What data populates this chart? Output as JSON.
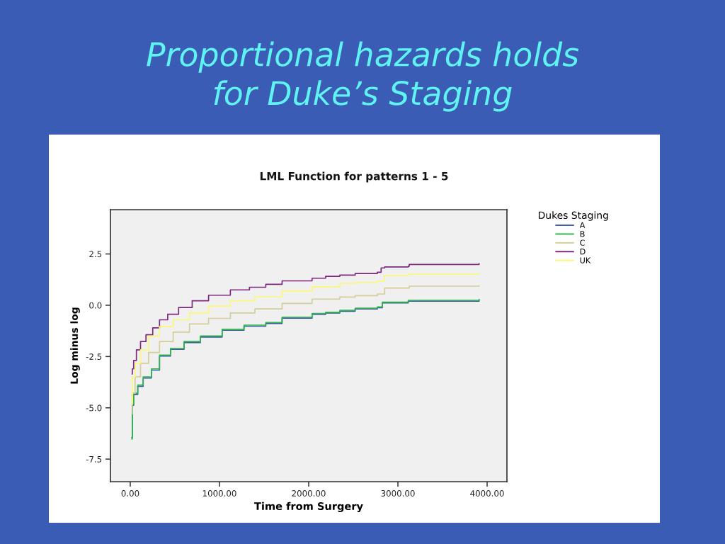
{
  "chart_data": {
    "type": "step",
    "title": "Proportional hazards holds\nfor Duke’s Staging",
    "subtitle": "LML Function for patterns 1 - 5",
    "xlabel": "Time from Surgery",
    "ylabel": "Log minus log",
    "legend_title": "Dukes Staging",
    "xlim": [
      -222,
      4222
    ],
    "ylim": [
      -8.6,
      4.66
    ],
    "xticks": [
      {
        "value": 0,
        "label": "0.00"
      },
      {
        "value": 1000,
        "label": "1000.00"
      },
      {
        "value": 2000,
        "label": "2000.00"
      },
      {
        "value": 3000,
        "label": "3000.00"
      },
      {
        "value": 4000,
        "label": "4000.00"
      }
    ],
    "yticks": [
      2.5,
      {
        "value": 0,
        "label": "0.0"
      },
      -2.5,
      {
        "value": -5,
        "label": "-5.0"
      },
      -7.5
    ],
    "legend": "right",
    "series": [
      {
        "name": "A",
        "color": "#3e58ac",
        "x": [
          16,
          23,
          38,
          84,
          145,
          237,
          328,
          451,
          603,
          786,
          1030,
          1275,
          1519,
          1702,
          2038,
          2190,
          2349,
          2521,
          2770,
          2825,
          3116,
          3910
        ],
        "values": [
          -6.45,
          -4.88,
          -4.35,
          -3.95,
          -3.55,
          -3.16,
          -2.48,
          -2.15,
          -1.82,
          -1.55,
          -1.22,
          -1.02,
          -0.89,
          -0.63,
          -0.45,
          -0.38,
          -0.29,
          -0.18,
          -0.12,
          0.11,
          0.2,
          0.25
        ]
      },
      {
        "name": "B",
        "color": "#2eb848",
        "x": [
          16,
          23,
          38,
          84,
          145,
          237,
          328,
          451,
          603,
          786,
          1030,
          1275,
          1519,
          1702,
          2038,
          2190,
          2349,
          2521,
          2770,
          2825,
          3116,
          3910
        ],
        "values": [
          -6.52,
          -4.82,
          -4.29,
          -3.89,
          -3.49,
          -3.1,
          -2.43,
          -2.1,
          -1.77,
          -1.5,
          -1.17,
          -0.97,
          -0.84,
          -0.58,
          -0.4,
          -0.34,
          -0.25,
          -0.14,
          -0.08,
          0.15,
          0.24,
          0.29
        ]
      },
      {
        "name": "C",
        "color": "#d3ce97",
        "x": [
          16,
          21,
          54,
          115,
          206,
          328,
          481,
          664,
          878,
          1122,
          1397,
          1702,
          2038,
          2349,
          2521,
          2770,
          2852,
          3127,
          3910
        ],
        "values": [
          -5.3,
          -4.29,
          -3.49,
          -2.83,
          -2.3,
          -1.77,
          -1.31,
          -0.91,
          -0.64,
          -0.38,
          -0.18,
          0.09,
          0.3,
          0.4,
          0.47,
          0.55,
          0.84,
          0.93,
          0.95
        ]
      },
      {
        "name": "D",
        "color": "#7c287d",
        "x": [
          20,
          23,
          38,
          69,
          115,
          176,
          252,
          328,
          420,
          542,
          694,
          878,
          1122,
          1336,
          1519,
          1702,
          2038,
          2190,
          2349,
          2521,
          2770,
          2812,
          2852,
          3116,
          3127,
          3910
        ],
        "values": [
          -3.35,
          -3.1,
          -2.69,
          -2.17,
          -1.77,
          -1.44,
          -1.1,
          -0.71,
          -0.44,
          -0.11,
          0.22,
          0.49,
          0.75,
          0.88,
          1.02,
          1.19,
          1.32,
          1.41,
          1.47,
          1.55,
          1.61,
          1.82,
          1.87,
          1.9,
          1.99,
          2.03
        ]
      },
      {
        "name": "UK",
        "color": "#fbf873",
        "x": [
          17,
          23,
          54,
          115,
          206,
          328,
          481,
          664,
          878,
          1122,
          1397,
          1702,
          2038,
          2349,
          2521,
          2770,
          2852,
          3116,
          3910
        ],
        "values": [
          -4.82,
          -3.49,
          -2.83,
          -2.17,
          -1.5,
          -1.04,
          -0.71,
          -0.38,
          -0.04,
          0.22,
          0.42,
          0.7,
          0.89,
          1.07,
          1.12,
          1.18,
          1.45,
          1.51,
          1.55
        ]
      }
    ]
  }
}
